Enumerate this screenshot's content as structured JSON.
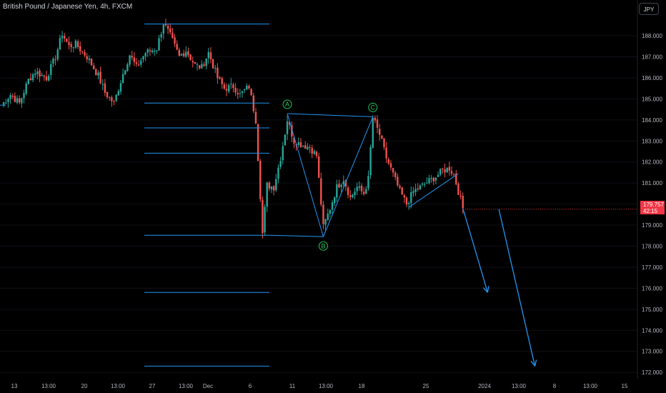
{
  "header": {
    "symbol_title": "British Pound / Japanese Yen, 4h, FXCM"
  },
  "currency_button": "JPY",
  "last_price": {
    "value": "179.757",
    "countdown": "42:15",
    "color": "#f23645"
  },
  "colors": {
    "bull": "#26a69a",
    "bear": "#ef5350",
    "drawing": "#2196f3",
    "wave_label": "#22c55e",
    "grid": "#0f1118"
  },
  "wave_labels": [
    "A",
    "B",
    "C"
  ],
  "chart_data": {
    "type": "candlestick",
    "title": "British Pound / Japanese Yen, 4h, FXCM",
    "y_axis": {
      "range": [
        171.7,
        189.7
      ],
      "ticks": [
        "188.000",
        "187.000",
        "186.000",
        "185.000",
        "184.000",
        "183.000",
        "182.000",
        "181.000",
        "180.000",
        "179.000",
        "178.000",
        "177.000",
        "176.000",
        "175.000",
        "174.000",
        "173.000",
        "172.000"
      ]
    },
    "x_axis_ticks": [
      "13",
      "13:00",
      "20",
      "13:00",
      "27",
      "13:00",
      "Dec",
      "6",
      "11",
      "13:00",
      "18",
      "25",
      "2024",
      "13:00",
      "8",
      "13:00",
      "15"
    ],
    "price_path": [
      [
        0,
        184.7
      ],
      [
        4,
        185.2
      ],
      [
        8,
        184.8
      ],
      [
        12,
        185.9
      ],
      [
        15,
        186.3
      ],
      [
        20,
        186.0
      ],
      [
        24,
        187.0
      ],
      [
        27,
        188.1
      ],
      [
        30,
        187.5
      ],
      [
        33,
        187.6
      ],
      [
        38,
        187.0
      ],
      [
        43,
        186.1
      ],
      [
        46,
        185.3
      ],
      [
        50,
        184.8
      ],
      [
        54,
        186.2
      ],
      [
        57,
        187.1
      ],
      [
        60,
        186.5
      ],
      [
        64,
        187.2
      ],
      [
        69,
        187.4
      ],
      [
        72,
        188.6
      ],
      [
        75,
        188.0
      ],
      [
        79,
        187.0
      ],
      [
        82,
        187.3
      ],
      [
        86,
        186.6
      ],
      [
        89,
        186.5
      ],
      [
        92,
        187.2
      ],
      [
        96,
        186.0
      ],
      [
        99,
        185.5
      ],
      [
        103,
        185.6
      ],
      [
        106,
        185.2
      ],
      [
        110,
        185.6
      ],
      [
        113,
        184.0
      ],
      [
        116,
        178.6
      ],
      [
        118,
        180.9
      ],
      [
        121,
        180.8
      ],
      [
        124,
        182.2
      ],
      [
        127,
        184.0
      ],
      [
        130,
        183.0
      ],
      [
        134,
        182.8
      ],
      [
        137,
        182.7
      ],
      [
        140,
        182.3
      ],
      [
        143,
        178.9
      ],
      [
        146,
        179.8
      ],
      [
        149,
        180.8
      ],
      [
        152,
        181.2
      ],
      [
        155,
        180.3
      ],
      [
        158,
        180.8
      ],
      [
        161,
        180.5
      ],
      [
        163,
        181.2
      ],
      [
        165,
        184.1
      ],
      [
        168,
        183.3
      ],
      [
        171,
        182.2
      ],
      [
        174,
        181.4
      ],
      [
        177,
        180.6
      ],
      [
        180,
        180.0
      ],
      [
        183,
        180.6
      ],
      [
        186,
        180.8
      ],
      [
        190,
        181.1
      ],
      [
        193,
        181.3
      ],
      [
        196,
        181.6
      ],
      [
        199,
        181.7
      ],
      [
        201,
        181.4
      ],
      [
        203,
        180.6
      ],
      [
        205,
        179.8
      ]
    ],
    "annotations": {
      "fib_levels": [
        188.56,
        184.8,
        183.62,
        182.42,
        178.52,
        175.8,
        172.3
      ],
      "wave_points": [
        [
          127,
          184.3
        ],
        [
          143,
          178.45
        ],
        [
          165,
          184.15
        ]
      ],
      "projection_arrows": [
        [
          [
            205,
            179.8
          ],
          [
            216,
            175.8
          ]
        ],
        [
          [
            221,
            179.75
          ],
          [
            237,
            172.3
          ]
        ]
      ]
    }
  }
}
